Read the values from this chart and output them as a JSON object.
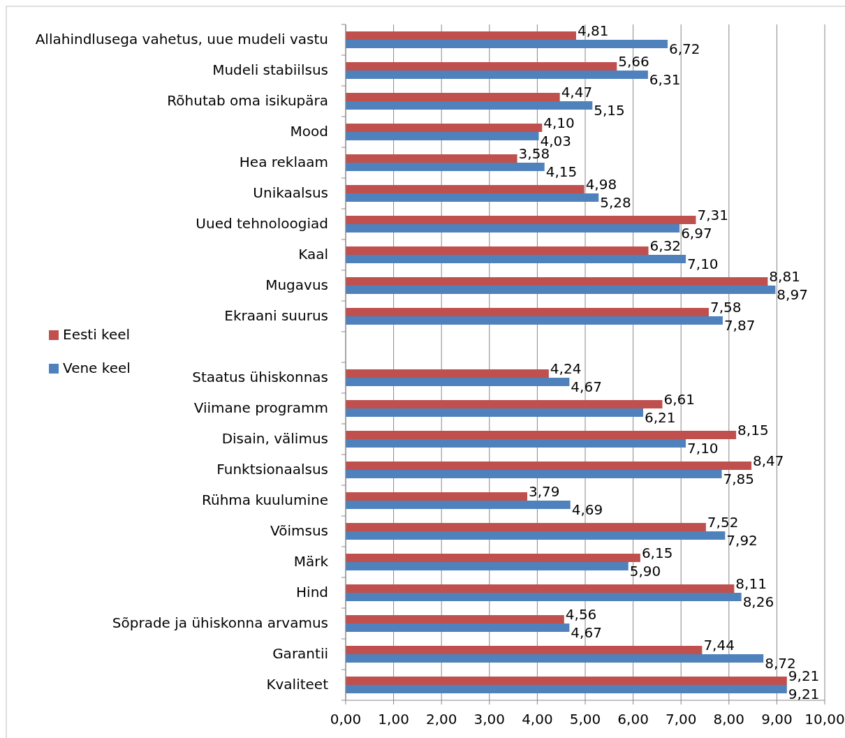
{
  "chart_data": {
    "type": "bar",
    "orientation": "horizontal",
    "categories": [
      "Allahindlusega vahetus, uue mudeli vastu",
      "Mudeli stabiilsus",
      "Rõhutab oma isikupära",
      "Mood",
      "Hea reklaam",
      "Unikaalsus",
      "Uued tehnoloogiad",
      "Kaal",
      "Mugavus",
      "Ekraani suurus",
      null,
      "Staatus ühiskonnas",
      "Viimane programm",
      "Disain, välimus",
      "Funktsionaalsus",
      "Rühma kuulumine",
      "Võimsus",
      "Märk",
      "Hind",
      "Sõprade ja ühiskonna arvamus",
      "Garantii",
      "Kvaliteet"
    ],
    "series": [
      {
        "name": "Eesti keel",
        "color": "#c0504d",
        "values": [
          4.81,
          5.66,
          4.47,
          4.1,
          3.58,
          4.98,
          7.31,
          6.32,
          8.81,
          7.58,
          null,
          4.24,
          6.61,
          8.15,
          8.47,
          3.79,
          7.52,
          6.15,
          8.11,
          4.56,
          7.44,
          9.21
        ],
        "value_labels": [
          "4,81",
          "5,66",
          "4,47",
          "4,10",
          "3,58",
          "4,98",
          "7,31",
          "6,32",
          "8,81",
          "7,58",
          null,
          "4,24",
          "6,61",
          "8,15",
          "8,47",
          "3,79",
          "7,52",
          "6,15",
          "8,11",
          "4,56",
          "7,44",
          "9,21"
        ]
      },
      {
        "name": "Vene keel",
        "color": "#4f81bd",
        "values": [
          6.72,
          6.31,
          5.15,
          4.03,
          4.15,
          5.28,
          6.97,
          7.1,
          8.97,
          7.87,
          null,
          4.67,
          6.21,
          7.1,
          7.85,
          4.69,
          7.92,
          5.9,
          8.26,
          4.67,
          8.72,
          9.21
        ],
        "value_labels": [
          "6,72",
          "6,31",
          "5,15",
          "4,03",
          "4,15",
          "5,28",
          "6,97",
          "7,10",
          "8,97",
          "7,87",
          null,
          "4,67",
          "6,21",
          "7,10",
          "7,85",
          "4,69",
          "7,92",
          "5,90",
          "8,26",
          "4,67",
          "8,72",
          "9,21"
        ]
      }
    ],
    "xlim": [
      0,
      10
    ],
    "xticks": [
      {
        "value": 0,
        "label": "0,00"
      },
      {
        "value": 1,
        "label": "1,00"
      },
      {
        "value": 2,
        "label": "2,00"
      },
      {
        "value": 3,
        "label": "3,00"
      },
      {
        "value": 4,
        "label": "4,00"
      },
      {
        "value": 5,
        "label": "5,00"
      },
      {
        "value": 6,
        "label": "6,00"
      },
      {
        "value": 7,
        "label": "7,00"
      },
      {
        "value": 8,
        "label": "8,00"
      },
      {
        "value": 9,
        "label": "9,00"
      },
      {
        "value": 10,
        "label": "10,00"
      }
    ],
    "grid": "x",
    "legend": "left"
  }
}
